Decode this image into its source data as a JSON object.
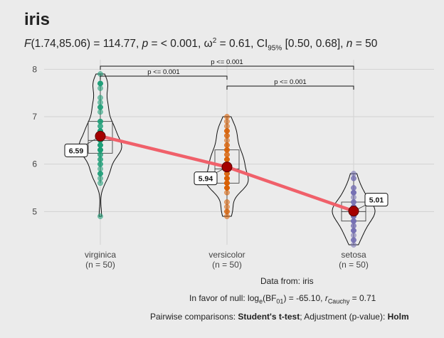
{
  "title": "iris",
  "subtitle": {
    "f_lhs": "F",
    "f_df": "(1.74,85.06)",
    "f_value": " = 114.77, ",
    "p_sym": "p",
    "p_value": " = < 0.001, ω",
    "omega_sup": "2",
    "omega_value": " = 0.61, CI",
    "ci_sub": "95%",
    "ci_value": " [0.50, 0.68], ",
    "n_sym": "n",
    "n_value": " = 50"
  },
  "captions": {
    "data_from": "Data from: iris",
    "null_prefix": "In favor of null: log",
    "null_sub": "e",
    "null_mid": "(BF",
    "null_sub2": "01",
    "null_val": ") = -65.10, ",
    "r_sym": "r",
    "r_sub": "Cauchy",
    "r_val": " = 0.71",
    "pairwise_prefix": "Pairwise comparisons: ",
    "pairwise_test": "Student's t-test",
    "pairwise_mid": "; Adjustment (p-value): ",
    "pairwise_adj": "Holm"
  },
  "colors": {
    "background": "#ebebeb",
    "grid": "#d2d2d2",
    "virginica": "#1b9e77",
    "versicolor": "#d95f02",
    "setosa": "#7570b3",
    "mean_point": "#a50000",
    "mean_line": "#f0606a"
  },
  "chart_data": {
    "type": "violin",
    "categories": [
      "virginica",
      "versicolor",
      "setosa"
    ],
    "category_n_labels": [
      "(n = 50)",
      "(n = 50)",
      "(n = 50)"
    ],
    "ylim": [
      4.3,
      8.2
    ],
    "yticks": [
      5,
      6,
      7,
      8
    ],
    "grid": true,
    "means": [
      6.59,
      5.94,
      5.01
    ],
    "mean_labels": [
      "6.59",
      "5.94",
      "5.01"
    ],
    "boxes": [
      {
        "q1": 6.23,
        "median": 6.5,
        "q3": 6.9,
        "min": 5.6,
        "max": 7.9
      },
      {
        "q1": 5.6,
        "median": 5.9,
        "q3": 6.3,
        "min": 4.9,
        "max": 7.0
      },
      {
        "q1": 4.8,
        "median": 5.0,
        "q3": 5.2,
        "min": 4.3,
        "max": 5.8
      }
    ],
    "points": [
      [
        4.9,
        5.6,
        5.7,
        5.8,
        5.8,
        5.8,
        5.9,
        6.0,
        6.0,
        6.1,
        6.1,
        6.2,
        6.2,
        6.3,
        6.3,
        6.3,
        6.3,
        6.3,
        6.3,
        6.4,
        6.4,
        6.4,
        6.4,
        6.4,
        6.5,
        6.5,
        6.5,
        6.5,
        6.7,
        6.7,
        6.7,
        6.7,
        6.7,
        6.8,
        6.8,
        6.9,
        6.9,
        6.9,
        7.1,
        7.2,
        7.2,
        7.2,
        7.3,
        7.4,
        7.6,
        7.7,
        7.7,
        7.7,
        7.7,
        7.9
      ],
      [
        4.9,
        5.0,
        5.0,
        5.1,
        5.2,
        5.4,
        5.5,
        5.5,
        5.5,
        5.5,
        5.5,
        5.6,
        5.6,
        5.6,
        5.6,
        5.6,
        5.7,
        5.7,
        5.7,
        5.7,
        5.7,
        5.8,
        5.8,
        5.8,
        5.9,
        5.9,
        6.0,
        6.0,
        6.0,
        6.0,
        6.1,
        6.1,
        6.1,
        6.1,
        6.2,
        6.2,
        6.3,
        6.3,
        6.3,
        6.4,
        6.4,
        6.5,
        6.6,
        6.6,
        6.7,
        6.7,
        6.7,
        6.8,
        6.9,
        7.0
      ],
      [
        4.3,
        4.4,
        4.4,
        4.4,
        4.5,
        4.6,
        4.6,
        4.6,
        4.6,
        4.7,
        4.7,
        4.8,
        4.8,
        4.8,
        4.8,
        4.8,
        4.9,
        4.9,
        4.9,
        4.9,
        5.0,
        5.0,
        5.0,
        5.0,
        5.0,
        5.0,
        5.0,
        5.0,
        5.1,
        5.1,
        5.1,
        5.1,
        5.1,
        5.1,
        5.1,
        5.1,
        5.2,
        5.2,
        5.2,
        5.3,
        5.4,
        5.4,
        5.4,
        5.4,
        5.4,
        5.5,
        5.5,
        5.7,
        5.7,
        5.8
      ]
    ],
    "comparisons": [
      {
        "from": 0,
        "to": 2,
        "label": "p <= 0.001",
        "level": 0
      },
      {
        "from": 0,
        "to": 1,
        "label": "p <= 0.001",
        "level": 1
      },
      {
        "from": 1,
        "to": 2,
        "label": "p <= 0.001",
        "level": 2
      }
    ]
  }
}
